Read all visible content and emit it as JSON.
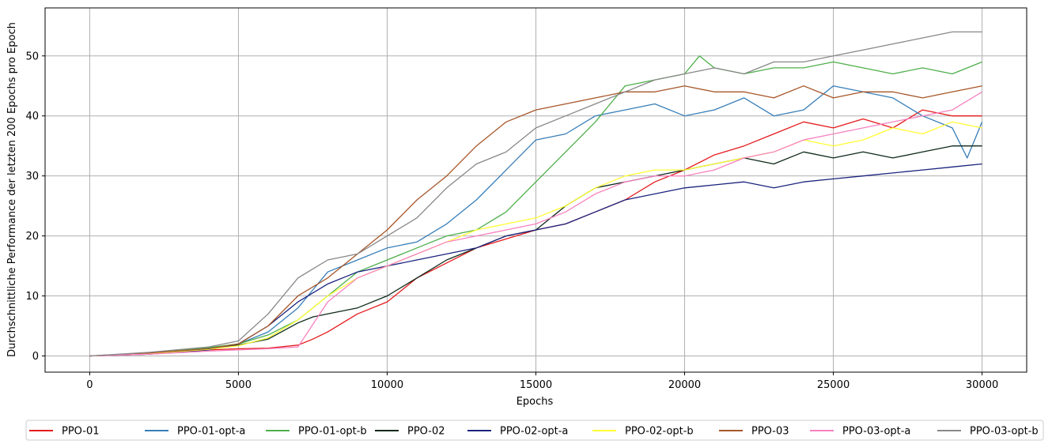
{
  "chart_data": {
    "type": "line",
    "title": "",
    "xlabel": "Epochs",
    "ylabel": "Durchschnittliche Performance der letzten 200 Epochs pro Epoch",
    "xlim": [
      -1500,
      31500
    ],
    "ylim": [
      -2.7,
      58
    ],
    "xticks": [
      0,
      5000,
      10000,
      15000,
      20000,
      25000,
      30000
    ],
    "yticks": [
      0,
      10,
      20,
      30,
      40,
      50
    ],
    "grid": true,
    "legend_position": "bottom-center",
    "series": [
      {
        "name": "PPO-01",
        "color": "#e41a1c",
        "x": [
          0,
          2000,
          3000,
          4000,
          5000,
          6000,
          7000,
          7500,
          8000,
          9000,
          10000,
          10500,
          11000,
          12000,
          13000,
          14000,
          15000,
          16000,
          17000,
          18000,
          19000,
          20000,
          21000,
          22000,
          23000,
          24000,
          25000,
          26000,
          27000,
          28000,
          29000,
          30000
        ],
        "y": [
          0,
          0.3,
          0.6,
          1.0,
          1.2,
          1.3,
          1.8,
          2.8,
          4,
          7,
          9,
          11,
          13,
          15.5,
          18,
          19.5,
          21,
          22,
          24,
          26,
          29,
          31,
          33.5,
          35,
          37,
          39,
          38,
          39.5,
          38,
          41,
          40,
          40
        ]
      },
      {
        "name": "PPO-01-opt-a",
        "color": "#377eb8",
        "x": [
          0,
          2000,
          4000,
          5000,
          6000,
          7000,
          7500,
          8000,
          9000,
          10000,
          11000,
          12000,
          13000,
          14000,
          15000,
          16000,
          17000,
          18000,
          19000,
          20000,
          21000,
          22000,
          23000,
          24000,
          25000,
          26000,
          27000,
          28000,
          29000,
          29500,
          30000
        ],
        "y": [
          0,
          0.4,
          1.3,
          2,
          4,
          8,
          11,
          14,
          16,
          18,
          19,
          22,
          26,
          31,
          36,
          37,
          40,
          41,
          42,
          40,
          41,
          43,
          40,
          41,
          45,
          44,
          43,
          40,
          38,
          33,
          39
        ]
      },
      {
        "name": "PPO-01-opt-b",
        "color": "#4daf4a",
        "x": [
          0,
          2000,
          4000,
          5000,
          6000,
          7000,
          8000,
          9000,
          10000,
          11000,
          12000,
          13000,
          14000,
          15000,
          16000,
          17000,
          18000,
          19000,
          20000,
          20500,
          21000,
          22000,
          23000,
          24000,
          25000,
          26000,
          27000,
          28000,
          29000,
          30000
        ],
        "y": [
          0,
          0.5,
          1.4,
          2,
          3.5,
          6,
          10,
          14,
          16,
          18,
          20,
          21,
          24,
          29,
          34,
          39,
          45,
          46,
          47,
          50,
          48,
          47,
          48,
          48,
          49,
          48,
          47,
          48,
          47,
          49
        ]
      },
      {
        "name": "PPO-02",
        "color": "#0d2a1a",
        "x": [
          0,
          2000,
          4000,
          5000,
          6000,
          7000,
          7500,
          8000,
          9000,
          10000,
          11000,
          12000,
          13000,
          14000,
          15000,
          16000,
          17000,
          18000,
          19000,
          20000,
          21000,
          22000,
          23000,
          24000,
          25000,
          26000,
          27000,
          28000,
          29000,
          30000
        ],
        "y": [
          0,
          0.4,
          1.2,
          1.8,
          2.8,
          5.5,
          6.5,
          7,
          8,
          10,
          13,
          16,
          18,
          20,
          21,
          25,
          28,
          29,
          30,
          31,
          32,
          33,
          32,
          34,
          33,
          34,
          33,
          34,
          35,
          35
        ]
      },
      {
        "name": "PPO-02-opt-a",
        "color": "#1a237e",
        "x": [
          0,
          2000,
          4000,
          5000,
          6000,
          7000,
          8000,
          9000,
          10000,
          11000,
          12000,
          13000,
          14000,
          15000,
          16000,
          17000,
          18000,
          19000,
          20000,
          21000,
          22000,
          23000,
          24000,
          25000,
          26000,
          27000,
          28000,
          29000,
          30000
        ],
        "y": [
          0,
          0.3,
          1.0,
          2,
          5,
          9,
          12,
          14,
          15,
          16,
          17,
          18,
          20,
          21,
          22,
          24,
          26,
          27,
          28,
          28.5,
          29,
          28,
          29,
          29.5,
          30,
          30.5,
          31,
          31.5,
          32
        ]
      },
      {
        "name": "PPO-02-opt-b",
        "color": "#ffff33",
        "x": [
          0,
          2000,
          4000,
          5000,
          6000,
          7000,
          8000,
          9000,
          10000,
          11000,
          12000,
          13000,
          14000,
          15000,
          16000,
          17000,
          18000,
          19000,
          20000,
          21000,
          22000,
          23000,
          24000,
          25000,
          26000,
          27000,
          28000,
          29000,
          30000
        ],
        "y": [
          0,
          0.4,
          1.1,
          1.7,
          3,
          6,
          10,
          13,
          15,
          17,
          19,
          21,
          22,
          23,
          25,
          28,
          30,
          31,
          31,
          32,
          33,
          34,
          36,
          35,
          36,
          38,
          37,
          39,
          38
        ]
      },
      {
        "name": "PPO-03",
        "color": "#a65628",
        "x": [
          0,
          2000,
          4000,
          5000,
          6000,
          7000,
          8000,
          9000,
          10000,
          11000,
          12000,
          13000,
          14000,
          15000,
          16000,
          17000,
          18000,
          19000,
          20000,
          21000,
          22000,
          23000,
          24000,
          25000,
          26000,
          27000,
          28000,
          29000,
          30000
        ],
        "y": [
          0,
          0.5,
          1.2,
          2,
          5,
          10,
          13,
          17,
          21,
          26,
          30,
          35,
          39,
          41,
          42,
          43,
          44,
          44,
          45,
          44,
          44,
          43,
          45,
          43,
          44,
          44,
          43,
          44,
          45
        ]
      },
      {
        "name": "PPO-03-opt-a",
        "color": "#f781bf",
        "x": [
          0,
          2000,
          4000,
          5000,
          6000,
          7000,
          8000,
          9000,
          10000,
          11000,
          12000,
          13000,
          14000,
          15000,
          16000,
          17000,
          18000,
          19000,
          20000,
          21000,
          22000,
          23000,
          24000,
          25000,
          26000,
          27000,
          28000,
          29000,
          30000
        ],
        "y": [
          0,
          0.3,
          0.8,
          1.0,
          1.2,
          1.5,
          9,
          13,
          15,
          17,
          19,
          20,
          21,
          22,
          24,
          27,
          29,
          30,
          30,
          31,
          33,
          34,
          36,
          37,
          38,
          39,
          40,
          41,
          44
        ]
      },
      {
        "name": "PPO-03-opt-b",
        "color": "#888888",
        "x": [
          0,
          2000,
          4000,
          5000,
          6000,
          7000,
          8000,
          9000,
          10000,
          11000,
          12000,
          13000,
          14000,
          15000,
          16000,
          17000,
          18000,
          19000,
          20000,
          21000,
          22000,
          23000,
          24000,
          25000,
          26000,
          27000,
          28000,
          29000,
          30000
        ],
        "y": [
          0,
          0.6,
          1.5,
          2.5,
          7,
          13,
          16,
          17,
          20,
          23,
          28,
          32,
          34,
          38,
          40,
          42,
          44,
          46,
          47,
          48,
          47,
          49,
          49,
          50,
          51,
          52,
          53,
          54,
          54
        ]
      }
    ]
  }
}
